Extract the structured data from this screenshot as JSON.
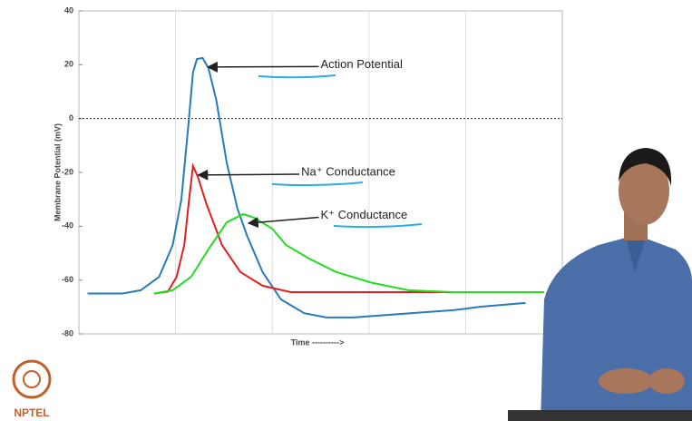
{
  "chart_data": {
    "type": "line",
    "y_label": "Membrane Potential (mV)",
    "x_label": "Time ---------->",
    "xlim": [
      0,
      5
    ],
    "ylim": [
      -80,
      40
    ],
    "yticks": [
      40,
      20,
      0,
      -20,
      -40,
      -60,
      -80
    ],
    "hline": 0,
    "grid": true,
    "series": [
      {
        "name": "Action Potential",
        "color": "#2a7ab8",
        "x": [
          0.09,
          0.45,
          0.64,
          0.83,
          0.97,
          1.06,
          1.13,
          1.18,
          1.22,
          1.28,
          1.34,
          1.42,
          1.53,
          1.64,
          1.74,
          1.9,
          2.09,
          2.33,
          2.56,
          2.84,
          3.22,
          3.59,
          3.87,
          4.16,
          4.62
        ],
        "values": [
          -65,
          -65,
          -63.8,
          -58.8,
          -47,
          -30,
          -3.1,
          17.1,
          22.1,
          22.5,
          18.8,
          7,
          -16.6,
          -33.5,
          -43.6,
          -57,
          -67.2,
          -72.3,
          -73.9,
          -73.9,
          -72.9,
          -71.9,
          -71.2,
          -69.9,
          -68.5
        ],
        "label_pos": [
          2.5,
          20
        ]
      },
      {
        "name": "Na⁺ Conductance",
        "color": "#e02020",
        "x": [
          0.78,
          0.92,
          1.01,
          1.09,
          1.14,
          1.18,
          1.23,
          1.32,
          1.48,
          1.67,
          1.9,
          2.19,
          2.94,
          3.87,
          4.81
        ],
        "values": [
          -65,
          -64.3,
          -58.8,
          -47,
          -30,
          -17.6,
          -21.6,
          -31.8,
          -47,
          -57,
          -62.1,
          -64.5,
          -64.5,
          -64.5,
          -64.5
        ],
        "label_pos": [
          2.3,
          -20
        ]
      },
      {
        "name": "K⁺ Conductance",
        "color": "#22dd22",
        "x": [
          0.78,
          0.97,
          1.16,
          1.34,
          1.53,
          1.7,
          1.81,
          2.0,
          2.14,
          2.38,
          2.66,
          3.03,
          3.41,
          3.87,
          4.81
        ],
        "values": [
          -65,
          -63.8,
          -58.8,
          -48.6,
          -38.5,
          -35.5,
          -36.8,
          -40.9,
          -46.9,
          -52,
          -57,
          -61,
          -63.8,
          -64.5,
          -64.5
        ],
        "label_pos": [
          2.5,
          -36
        ]
      }
    ]
  },
  "logo": {
    "text": "NPTEL"
  }
}
